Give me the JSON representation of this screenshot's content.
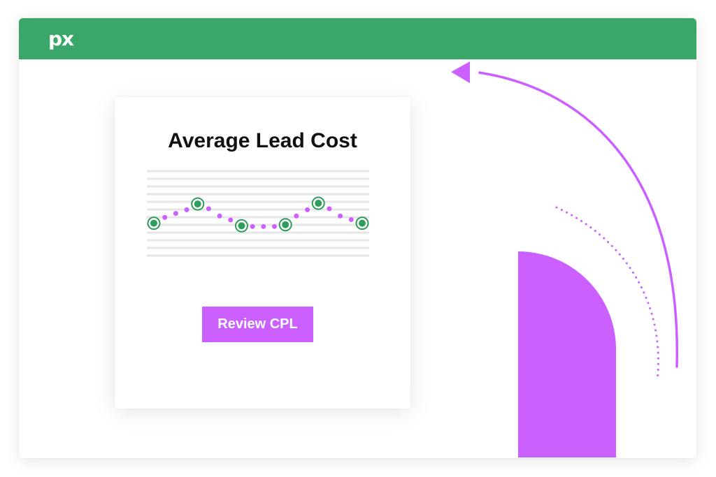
{
  "app": {
    "logo_text": "px",
    "colors": {
      "header": "#3aa66a",
      "accent": "#cc5fff",
      "point": "#2e9c5a"
    }
  },
  "card": {
    "title": "Average Lead Cost",
    "button_label": "Review CPL"
  },
  "chart_data": {
    "type": "line",
    "title": "Average Lead Cost",
    "points": [
      {
        "y": 0.18,
        "marker": true
      },
      {
        "y": 0.34
      },
      {
        "y": 0.45
      },
      {
        "y": 0.55
      },
      {
        "y": 0.71,
        "marker": true
      },
      {
        "y": 0.58
      },
      {
        "y": 0.38
      },
      {
        "y": 0.27
      },
      {
        "y": 0.11,
        "marker": true
      },
      {
        "y": 0.09
      },
      {
        "y": 0.09
      },
      {
        "y": 0.09
      },
      {
        "y": 0.14,
        "marker": true
      },
      {
        "y": 0.38
      },
      {
        "y": 0.55
      },
      {
        "y": 0.73,
        "marker": true
      },
      {
        "y": 0.58
      },
      {
        "y": 0.38
      },
      {
        "y": 0.28
      },
      {
        "y": 0.18,
        "marker": true
      }
    ],
    "grid": true,
    "legend": "none"
  }
}
